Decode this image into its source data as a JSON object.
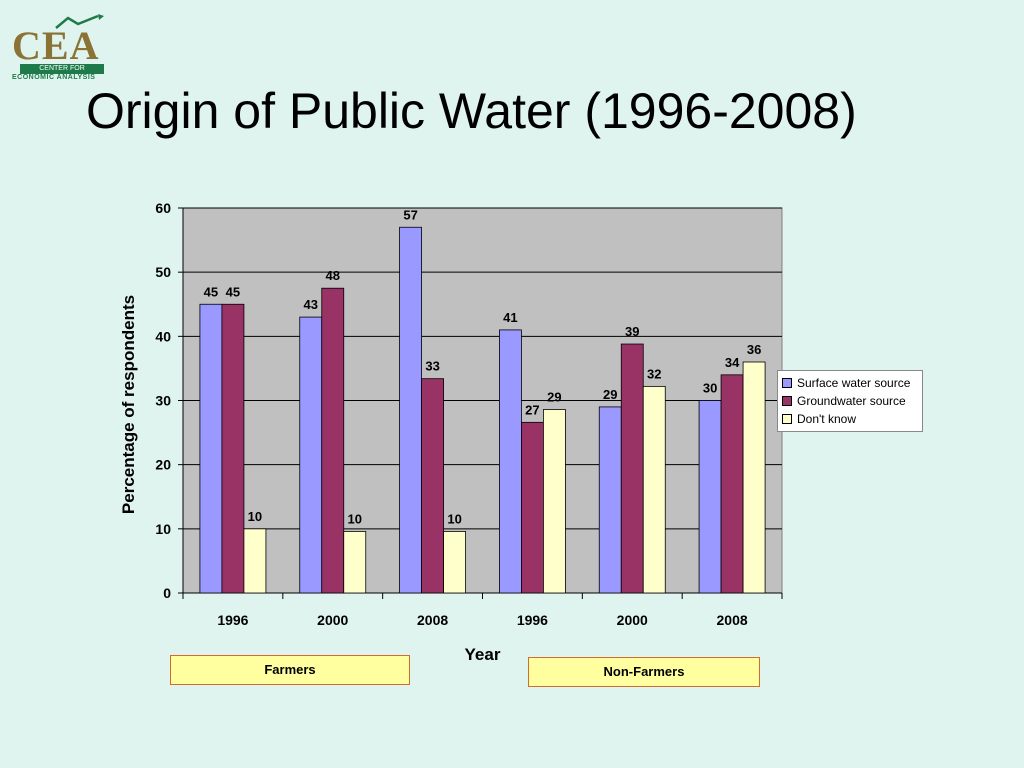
{
  "logo": {
    "mark": "CEA",
    "band": "CENTER FOR",
    "sub": "ECONOMIC ANALYSIS"
  },
  "title": "Origin of Public Water (1996-2008)",
  "groups": [
    "Farmers",
    "Non-Farmers"
  ],
  "chart_data": {
    "type": "bar",
    "categories": [
      "1996",
      "2000",
      "2008",
      "1996",
      "2000",
      "2008"
    ],
    "series": [
      {
        "name": "Surface water source",
        "color": "#9999ff",
        "values": [
          45,
          43,
          57,
          41,
          29,
          30
        ],
        "labels": [
          "45",
          "43",
          "57",
          "41",
          "29",
          "30"
        ]
      },
      {
        "name": "Groundwater source",
        "color": "#993366",
        "values": [
          45,
          47.5,
          33.4,
          26.6,
          38.8,
          34
        ],
        "labels": [
          "45",
          "48",
          "33",
          "27",
          "39",
          "34"
        ]
      },
      {
        "name": "Don't know",
        "color": "#ffffcc",
        "values": [
          10,
          9.6,
          9.6,
          28.6,
          32.2,
          36
        ],
        "labels": [
          "10",
          "10",
          "10",
          "29",
          "32",
          "36"
        ]
      }
    ],
    "xlabel": "Year",
    "ylabel": "Percentage of respondents",
    "ylim": [
      0,
      60
    ],
    "yticks": [
      0,
      10,
      20,
      30,
      40,
      50,
      60
    ],
    "grid": true,
    "plot_background": "#c0c0c0",
    "legend_position": "right"
  }
}
